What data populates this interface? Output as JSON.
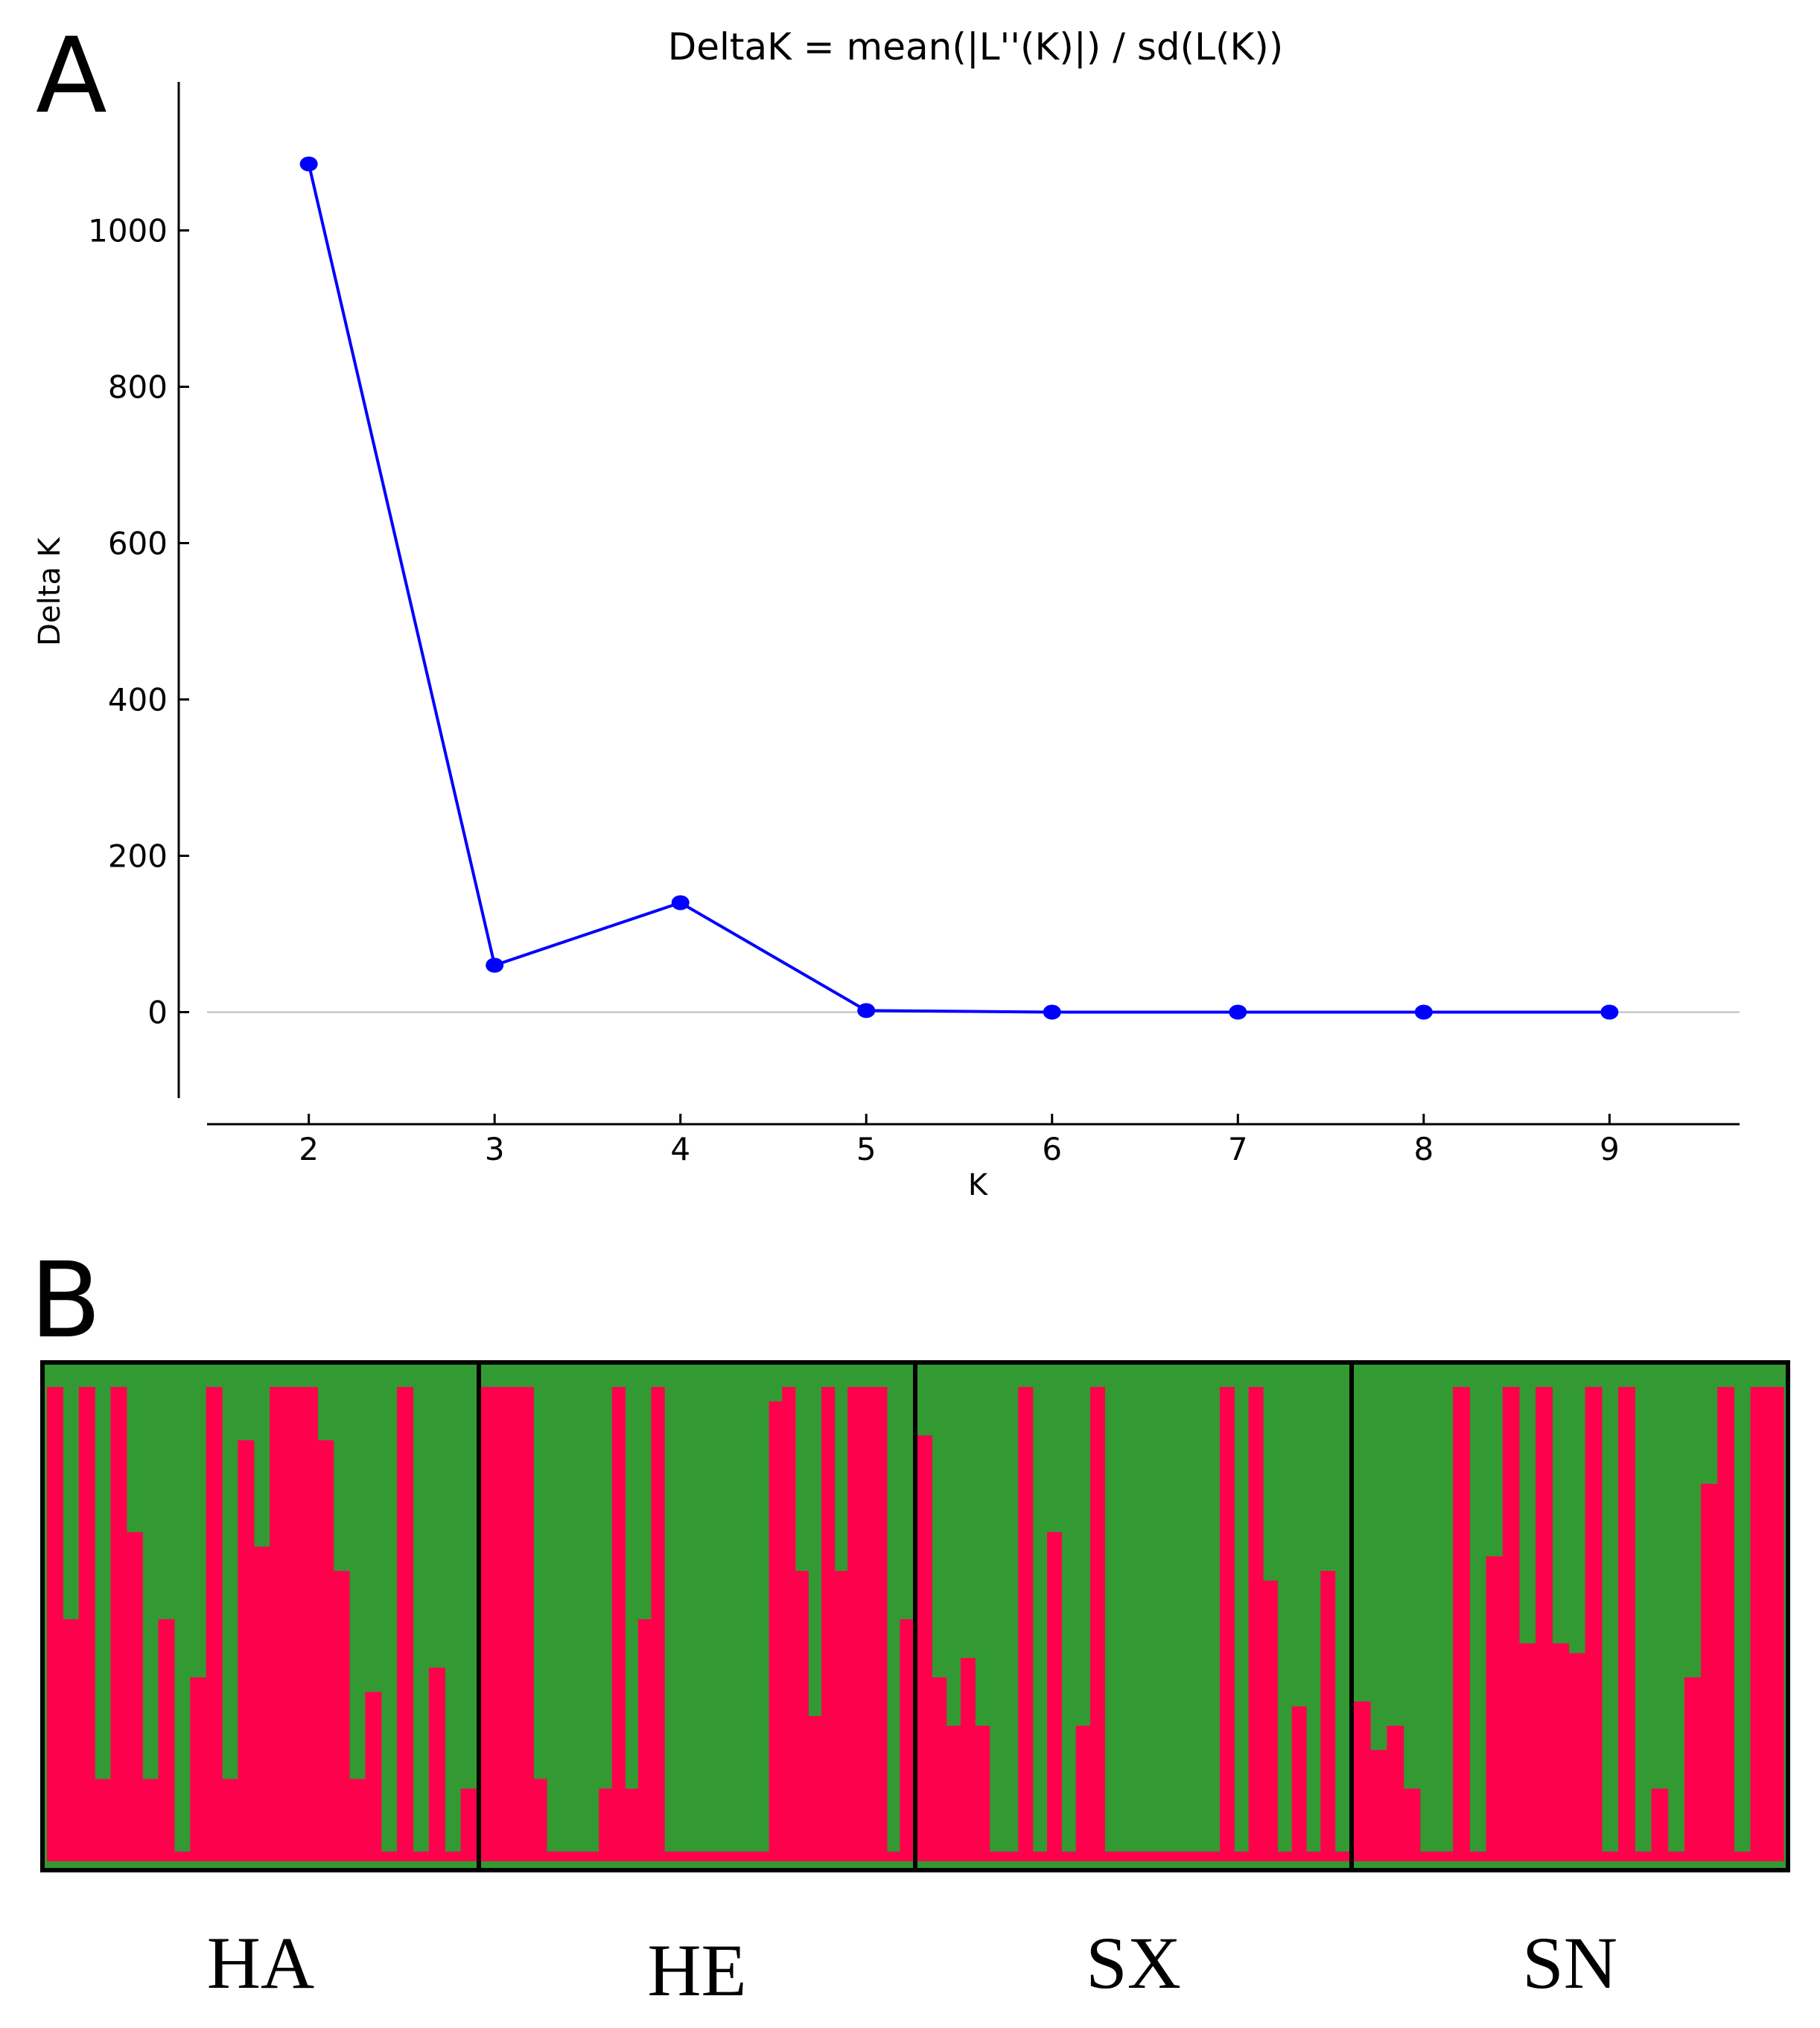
{
  "chart_data": [
    {
      "type": "line",
      "panel": "A",
      "title": "DeltaK = mean(|L''(K)|) / sd(L(K))",
      "xlabel": "K",
      "ylabel": "Delta K",
      "x": [
        2,
        3,
        4,
        5,
        6,
        7,
        8,
        9
      ],
      "series": [
        {
          "name": "Delta K",
          "values": [
            1085,
            60,
            140,
            2,
            0,
            0,
            0,
            0
          ],
          "color": "#0000ff"
        }
      ],
      "xlim": [
        1.3,
        9.7
      ],
      "ylim": [
        -110,
        1190
      ],
      "xticks": [
        2,
        3,
        4,
        5,
        6,
        7,
        8,
        9
      ],
      "yticks": [
        0,
        200,
        400,
        600,
        800,
        1000
      ],
      "reference_line_y": 0
    },
    {
      "type": "bar",
      "subtype": "stacked-structure",
      "panel": "B",
      "populations": [
        "HA",
        "HE",
        "SX",
        "SN"
      ],
      "colors": {
        "cluster1": "#ff004c",
        "cluster2": "#339933"
      },
      "groups": [
        {
          "name": "HA",
          "values": [
            0.98,
            0.5,
            0.98,
            0.17,
            0.98,
            0.68,
            0.17,
            0.5,
            0.02,
            0.38,
            0.98,
            0.17,
            0.87,
            0.65,
            0.98,
            0.98,
            0.98,
            0.87,
            0.6,
            0.17,
            0.35,
            0.02,
            0.98,
            0.02,
            0.4,
            0.02,
            0.15
          ]
        },
        {
          "name": "HE",
          "values": [
            0.98,
            0.98,
            0.98,
            0.98,
            0.17,
            0.02,
            0.02,
            0.02,
            0.02,
            0.15,
            0.98,
            0.15,
            0.5,
            0.98,
            0.02,
            0.02,
            0.02,
            0.02,
            0.02,
            0.02,
            0.02,
            0.02,
            0.95,
            0.98,
            0.6,
            0.3,
            0.98,
            0.6,
            0.98,
            0.98,
            0.98,
            0.02,
            0.5
          ]
        },
        {
          "name": "SX",
          "values": [
            0.88,
            0.38,
            0.28,
            0.42,
            0.28,
            0.02,
            0.02,
            0.98,
            0.02,
            0.68,
            0.02,
            0.28,
            0.98,
            0.02,
            0.02,
            0.02,
            0.02,
            0.02,
            0.02,
            0.02,
            0.02,
            0.98,
            0.02,
            0.98,
            0.58,
            0.02,
            0.32,
            0.02,
            0.6,
            0.02
          ]
        },
        {
          "name": "SN",
          "values": [
            0.33,
            0.23,
            0.28,
            0.15,
            0.02,
            0.02,
            0.98,
            0.02,
            0.63,
            0.98,
            0.45,
            0.98,
            0.45,
            0.43,
            0.98,
            0.02,
            0.98,
            0.02,
            0.15,
            0.02,
            0.38,
            0.78,
            0.98,
            0.02,
            0.98,
            0.98
          ]
        }
      ]
    }
  ]
}
